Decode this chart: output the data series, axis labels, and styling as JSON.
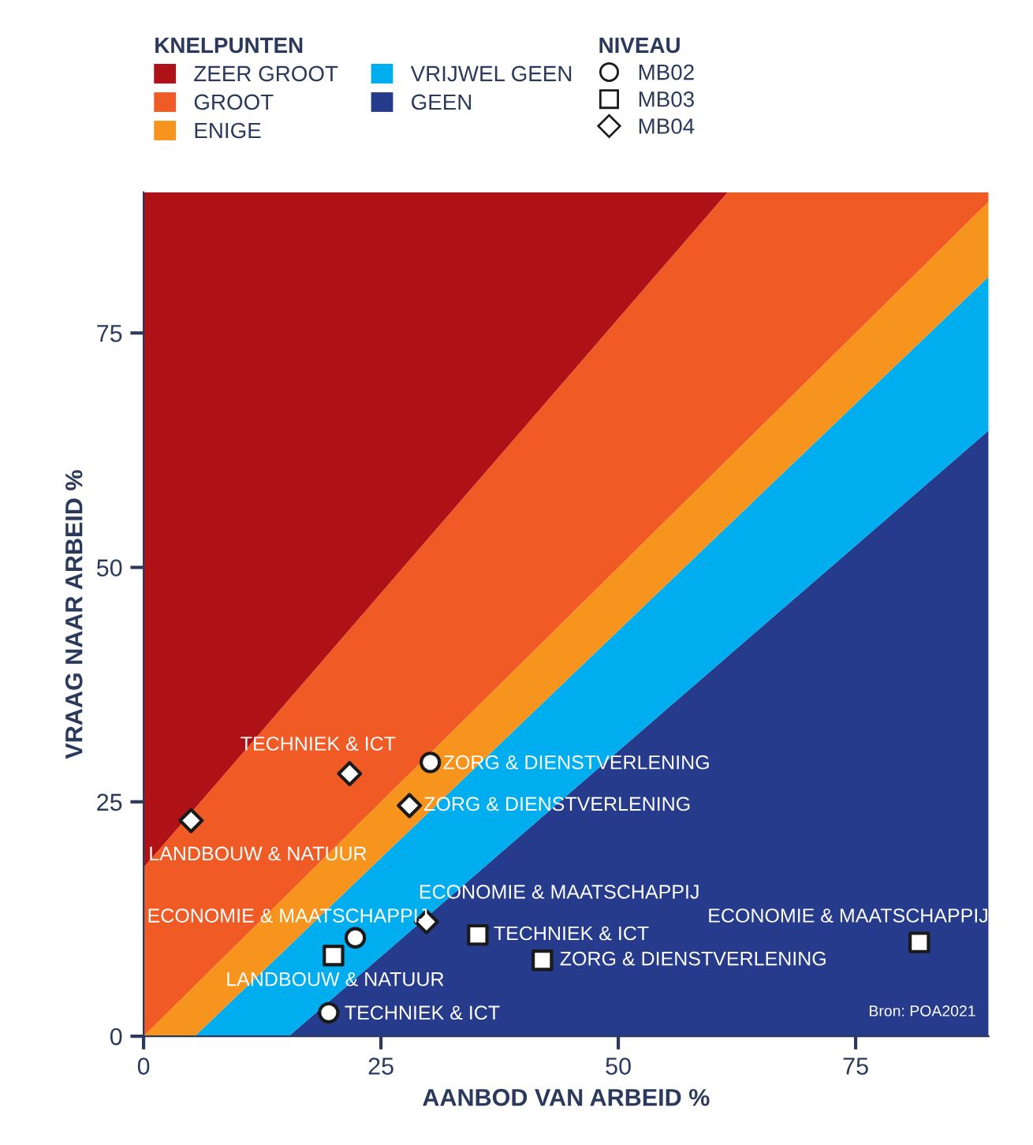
{
  "chart_data": {
    "type": "scatter",
    "xlabel": "AANBOD VAN ARBEID %",
    "ylabel": "VRAAG NAAR ARBEID %",
    "xlim": [
      0,
      89
    ],
    "ylim": [
      0,
      90
    ],
    "xticks": [
      0,
      25,
      50,
      75
    ],
    "yticks": [
      0,
      25,
      50,
      75
    ],
    "grid": false,
    "legend": "top",
    "stacked": true,
    "legend_title": [
      "KNELPUNTEN",
      "NIVEAU"
    ],
    "series": [
      {
        "name": "GEEN",
        "type": "area",
        "color": "#263b8c",
        "x": [
          0,
          5.4,
          15.3,
          61.5,
          89
        ],
        "values": [
          0,
          0,
          0,
          40.5,
          64.6
        ]
      },
      {
        "name": "VRIJWEL GEEN",
        "type": "area",
        "color": "#00aeef",
        "x": [
          0,
          5.4,
          15.3,
          61.5,
          89
        ],
        "values": [
          0,
          0,
          9.6,
          13.9,
          16.4
        ]
      },
      {
        "name": "ENIGE",
        "type": "area",
        "color": "#f7941d",
        "x": [
          0,
          5.4,
          15.3,
          61.5,
          89
        ],
        "values": [
          0,
          5.4,
          5.7,
          7.1,
          8
        ]
      },
      {
        "name": "GROOT",
        "type": "area",
        "color": "#f05a24",
        "x": [
          0,
          5.4,
          15.3,
          61.5,
          89
        ],
        "values": [
          18,
          18.9,
          20.6,
          28.5,
          1
        ]
      },
      {
        "name": "ZEER GROOT",
        "type": "area",
        "color": "#ae1116",
        "x": [
          0,
          5.4,
          15.3,
          61.5,
          89
        ],
        "values": [
          72,
          65.7,
          54.1,
          0,
          0
        ]
      },
      {
        "name": "MB02",
        "marker": "circle",
        "color": "#ffffff",
        "x": [
          30.2,
          22.3,
          19.5
        ],
        "values": [
          29.2,
          10.5,
          2.5
        ]
      },
      {
        "name": "MB03",
        "marker": "square",
        "color": "#ffffff",
        "x": [
          20,
          35.2,
          42,
          81.7
        ],
        "values": [
          8.6,
          10.8,
          8.1,
          10
        ]
      },
      {
        "name": "MB04",
        "marker": "diamond",
        "color": "#ffffff",
        "x": [
          5,
          21.7,
          28,
          29.8
        ],
        "values": [
          23,
          28,
          24.6,
          12.2
        ]
      }
    ],
    "annotations": [
      {
        "text": "LANDBOUW & NATUUR",
        "x": 5,
        "y": 23
      },
      {
        "text": "TECHNIEK & ICT",
        "x": 21.7,
        "y": 28
      },
      {
        "text": "ZORG & DIENSTVERLENING",
        "x": 28,
        "y": 24.6
      },
      {
        "text": "ECONOMIE & MAATSCHAPPIJ",
        "x": 29.8,
        "y": 12.2
      },
      {
        "text": "ZORG & DIENSTVERLENING",
        "x": 30.2,
        "y": 29.2
      },
      {
        "text": "ECONOMIE & MAATSCHAPPIJ",
        "x": 22.3,
        "y": 10.5
      },
      {
        "text": "TECHNIEK & ICT",
        "x": 19.5,
        "y": 2.5
      },
      {
        "text": "LANDBOUW & NATUUR",
        "x": 20,
        "y": 8.6
      },
      {
        "text": "TECHNIEK & ICT",
        "x": 35.2,
        "y": 10.8
      },
      {
        "text": "ZORG & DIENSTVERLENING",
        "x": 42,
        "y": 8.1
      },
      {
        "text": "ECONOMIE & MAATSCHAPPIJ",
        "x": 81.7,
        "y": 10
      },
      "Bron: POA2021"
    ]
  }
}
